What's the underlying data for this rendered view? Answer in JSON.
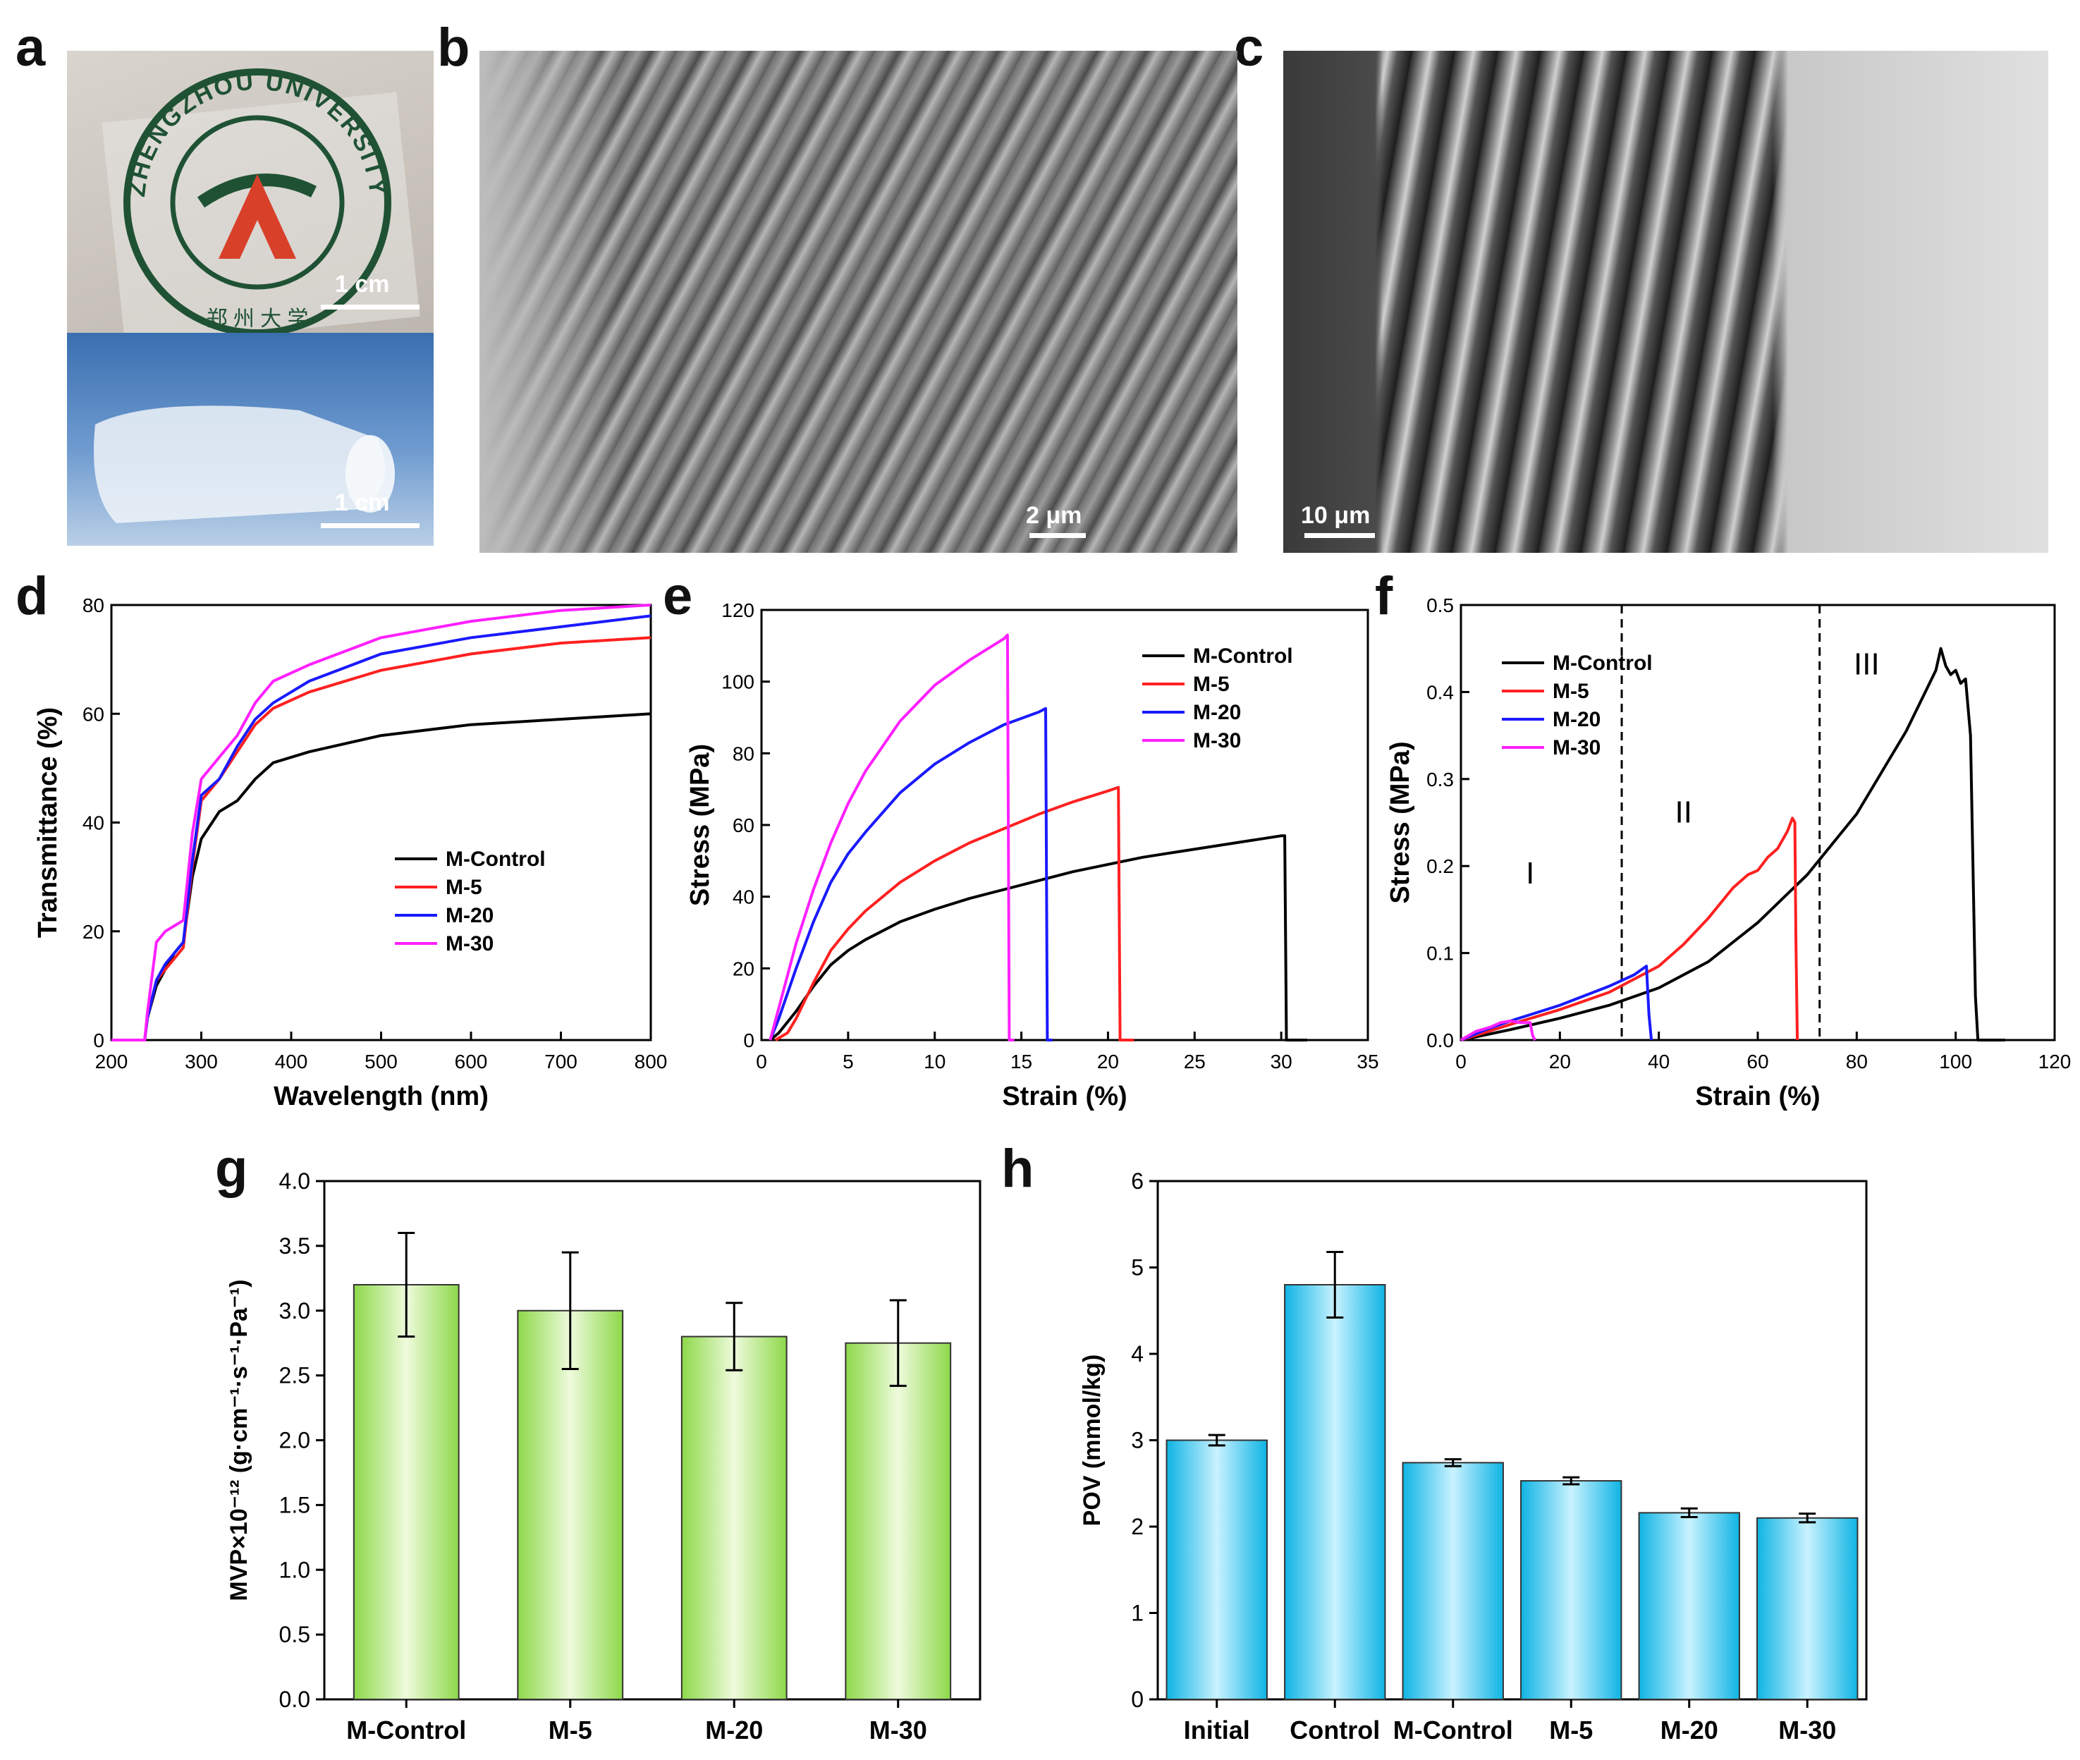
{
  "panel_labels": [
    "a",
    "b",
    "c",
    "d",
    "e",
    "f",
    "g",
    "h"
  ],
  "photo_a": {
    "seal_text": "ZHENGZHOU UNIVERSITY",
    "seal_chinese": "郑 州 大 学",
    "scale_top": "1 cm",
    "scale_bottom": "1 cm"
  },
  "sem_b": {
    "scale": "2 μm"
  },
  "sem_c": {
    "scale": "10 μm"
  },
  "colors": {
    "M-Control": "#000000",
    "M-5": "#ff2020",
    "M-20": "#1a1aff",
    "M-30": "#ff20ff",
    "bar_green": "#a8e06a",
    "bar_cyan": "#1ec8f0"
  },
  "chart_data": [
    {
      "id": "d",
      "type": "line",
      "xlabel": "Wavelength (nm)",
      "ylabel": "Transmittance (%)",
      "xlim": [
        200,
        800
      ],
      "ylim": [
        0,
        80
      ],
      "xticks": [
        200,
        300,
        400,
        500,
        600,
        700,
        800
      ],
      "yticks": [
        0,
        20,
        40,
        60,
        80
      ],
      "legend": [
        "M-Control",
        "M-5",
        "M-20",
        "M-30"
      ],
      "legend_position": "lower-right",
      "series": [
        {
          "name": "M-Control",
          "x": [
            200,
            237,
            240,
            250,
            260,
            270,
            280,
            290,
            300,
            320,
            340,
            360,
            380,
            420,
            500,
            600,
            700,
            800
          ],
          "y": [
            0,
            0,
            4,
            10,
            13,
            16,
            18,
            30,
            37,
            42,
            44,
            48,
            51,
            53,
            56,
            58,
            59,
            60
          ]
        },
        {
          "name": "M-5",
          "x": [
            200,
            237,
            240,
            250,
            260,
            270,
            280,
            290,
            300,
            320,
            340,
            360,
            380,
            420,
            500,
            600,
            700,
            800
          ],
          "y": [
            0,
            0,
            4,
            11,
            13,
            15,
            17,
            32,
            44,
            48,
            53,
            58,
            61,
            64,
            68,
            71,
            73,
            74
          ]
        },
        {
          "name": "M-20",
          "x": [
            200,
            237,
            240,
            250,
            260,
            270,
            280,
            290,
            300,
            320,
            340,
            360,
            380,
            420,
            500,
            600,
            700,
            800
          ],
          "y": [
            0,
            0,
            4,
            11,
            14,
            16,
            18,
            33,
            45,
            48,
            54,
            59,
            62,
            66,
            71,
            74,
            76,
            78
          ]
        },
        {
          "name": "M-30",
          "x": [
            200,
            237,
            240,
            250,
            260,
            270,
            280,
            290,
            300,
            320,
            340,
            360,
            380,
            420,
            500,
            600,
            700,
            800
          ],
          "y": [
            0,
            0,
            5,
            18,
            20,
            21,
            22,
            38,
            48,
            52,
            56,
            62,
            66,
            69,
            74,
            77,
            79,
            80
          ]
        }
      ]
    },
    {
      "id": "e",
      "type": "line",
      "xlabel": "Strain (%)",
      "ylabel": "Stress (MPa)",
      "xlim": [
        0,
        35
      ],
      "ylim": [
        0,
        120
      ],
      "xticks": [
        0,
        5,
        10,
        15,
        20,
        25,
        30,
        35
      ],
      "yticks": [
        0,
        20,
        40,
        60,
        80,
        100,
        120
      ],
      "legend": [
        "M-Control",
        "M-5",
        "M-20",
        "M-30"
      ],
      "legend_position": "top-right",
      "series": [
        {
          "name": "M-Control",
          "x": [
            0.5,
            1,
            2,
            3,
            4,
            5,
            6,
            8,
            10,
            12,
            14,
            16,
            18,
            20,
            22,
            24,
            26,
            28,
            30,
            30.2,
            30.3,
            31.5
          ],
          "y": [
            0,
            2,
            8,
            15,
            21,
            25,
            28,
            33,
            36.5,
            39.5,
            42,
            44.5,
            47,
            49,
            51,
            52.5,
            54,
            55.5,
            57,
            57,
            0,
            0
          ]
        },
        {
          "name": "M-5",
          "x": [
            0.8,
            1.5,
            2,
            3,
            4,
            5,
            6,
            8,
            10,
            12,
            14,
            16,
            18,
            20,
            20.6,
            20.7,
            21.5
          ],
          "y": [
            0,
            2,
            6,
            16,
            25,
            31,
            36,
            44,
            50,
            55,
            59,
            63,
            66.5,
            69.5,
            70.5,
            0,
            0
          ]
        },
        {
          "name": "M-20",
          "x": [
            0.5,
            1,
            2,
            3,
            4,
            5,
            6,
            8,
            10,
            12,
            14,
            16,
            16.4,
            16.5,
            16.8
          ],
          "y": [
            0,
            6,
            20,
            33,
            44,
            52,
            58,
            69,
            77,
            83,
            88,
            91.5,
            92.5,
            0,
            0
          ]
        },
        {
          "name": "M-30",
          "x": [
            0.5,
            1,
            2,
            3,
            4,
            5,
            6,
            8,
            10,
            12,
            14,
            14.2,
            14.3,
            14.6
          ],
          "y": [
            0,
            9,
            27,
            42,
            55,
            66,
            75,
            89,
            99,
            106,
            112,
            113,
            0,
            0
          ]
        }
      ]
    },
    {
      "id": "f",
      "type": "line",
      "xlabel": "Strain (%)",
      "ylabel": "Stress (MPa)",
      "xlim": [
        0,
        120
      ],
      "ylim": [
        0,
        0.5
      ],
      "xticks": [
        0,
        20,
        40,
        60,
        80,
        100,
        120
      ],
      "yticks": [
        0.0,
        0.1,
        0.2,
        0.3,
        0.4,
        0.5
      ],
      "legend": [
        "M-Control",
        "M-5",
        "M-20",
        "M-30"
      ],
      "legend_position": "top-left",
      "dividers": [
        32.5,
        72.5
      ],
      "region_labels": [
        {
          "text": "I",
          "x": 14,
          "y": 0.18
        },
        {
          "text": "II",
          "x": 45,
          "y": 0.25
        },
        {
          "text": "III",
          "x": 82,
          "y": 0.42
        }
      ],
      "series": [
        {
          "name": "M-Control",
          "x": [
            0,
            10,
            20,
            30,
            40,
            50,
            60,
            70,
            80,
            90,
            96,
            97,
            98,
            99,
            100,
            101,
            102,
            103,
            103.5,
            104,
            104.5,
            110
          ],
          "y": [
            0,
            0.012,
            0.025,
            0.04,
            0.06,
            0.09,
            0.135,
            0.19,
            0.26,
            0.355,
            0.425,
            0.45,
            0.43,
            0.42,
            0.425,
            0.41,
            0.415,
            0.35,
            0.2,
            0.05,
            0,
            0
          ]
        },
        {
          "name": "M-5",
          "x": [
            0,
            10,
            20,
            30,
            40,
            45,
            50,
            55,
            58,
            60,
            62,
            64,
            66,
            67,
            67.5,
            67.7,
            68
          ],
          "y": [
            0,
            0.018,
            0.035,
            0.055,
            0.085,
            0.11,
            0.14,
            0.175,
            0.19,
            0.195,
            0.21,
            0.22,
            0.24,
            0.255,
            0.25,
            0.12,
            0
          ]
        },
        {
          "name": "M-20",
          "x": [
            0,
            5,
            10,
            20,
            30,
            35,
            37.5,
            38,
            38.5
          ],
          "y": [
            0,
            0.012,
            0.022,
            0.04,
            0.062,
            0.075,
            0.085,
            0.03,
            0
          ]
        },
        {
          "name": "M-30",
          "x": [
            0,
            3,
            6,
            8,
            10,
            12,
            14,
            14.5,
            15
          ],
          "y": [
            0,
            0.01,
            0.015,
            0.02,
            0.022,
            0.02,
            0.02,
            0.005,
            0
          ]
        }
      ]
    },
    {
      "id": "g",
      "type": "bar",
      "ylabel": "MVP×10⁻¹² (g·cm⁻¹·s⁻¹·Pa⁻¹)",
      "categories": [
        "M-Control",
        "M-5",
        "M-20",
        "M-30"
      ],
      "values": [
        3.2,
        3.0,
        2.8,
        2.75
      ],
      "errors": [
        0.4,
        0.45,
        0.26,
        0.33
      ],
      "ylim": [
        0,
        4.0
      ],
      "yticks": [
        "0.0",
        "0.5",
        "1.0",
        "1.5",
        "2.0",
        "2.5",
        "3.0",
        "3.5",
        "4.0"
      ]
    },
    {
      "id": "h",
      "type": "bar",
      "ylabel": "POV (mmol/kg)",
      "categories": [
        "Initial",
        "Control",
        "M-Control",
        "M-5",
        "M-20",
        "M-30"
      ],
      "values": [
        3.0,
        4.8,
        2.74,
        2.53,
        2.16,
        2.1
      ],
      "errors": [
        0.06,
        0.38,
        0.04,
        0.04,
        0.05,
        0.05
      ],
      "ylim": [
        0,
        6
      ],
      "yticks": [
        "0",
        "1",
        "2",
        "3",
        "4",
        "5",
        "6"
      ]
    }
  ]
}
